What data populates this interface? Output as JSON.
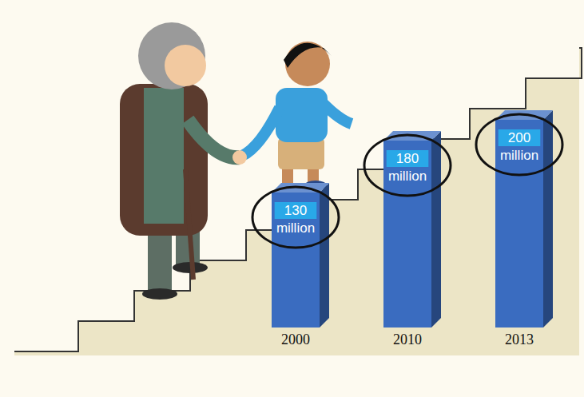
{
  "chart_data": {
    "type": "bar",
    "categories": [
      "2000",
      "2010",
      "2013"
    ],
    "values": [
      130,
      180,
      200
    ],
    "value_labels": [
      "130 million",
      "180 million",
      "200 million"
    ],
    "data_labels": true,
    "tick_labels": "x",
    "color": "#3a6cc0"
  }
}
